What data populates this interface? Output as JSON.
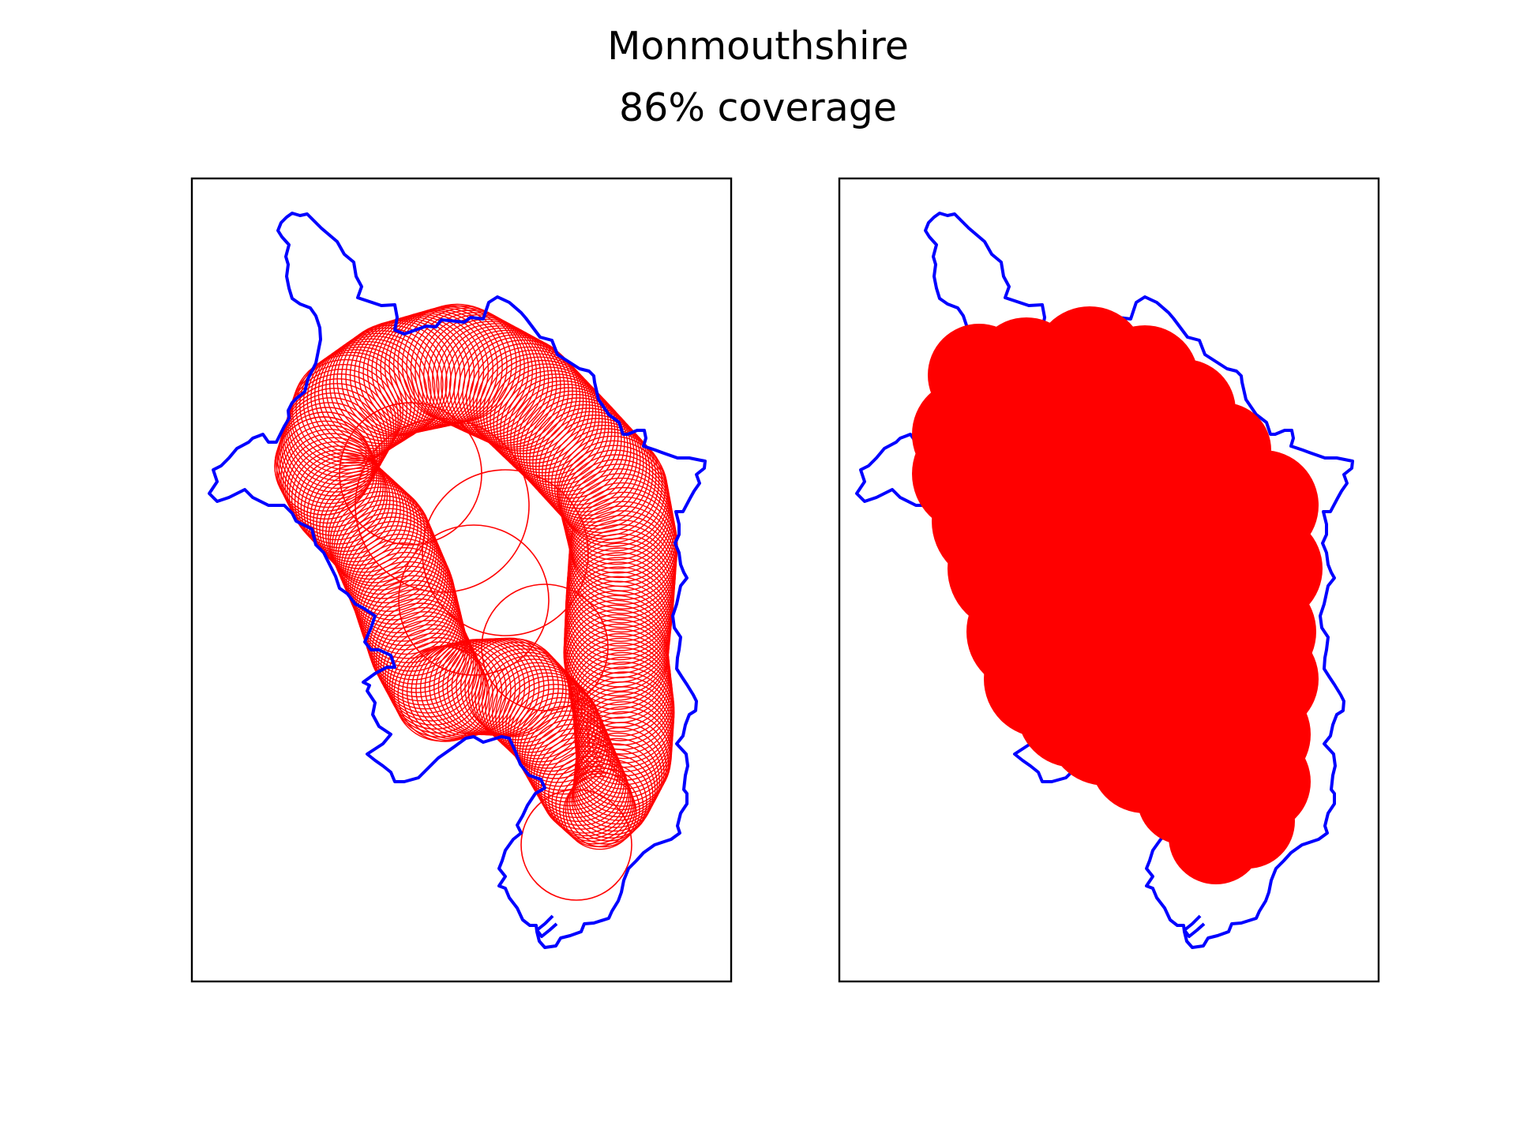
{
  "figure": {
    "title": "Monmouthshire",
    "subtitle": "86% coverage"
  },
  "colors": {
    "boundary": "#0000ff",
    "coverage": "#ff0000",
    "frame": "#000000"
  },
  "panels": [
    {
      "name": "circle-outlines-panel",
      "style": "outline"
    },
    {
      "name": "filled-coverage-panel",
      "style": "filled"
    }
  ]
}
